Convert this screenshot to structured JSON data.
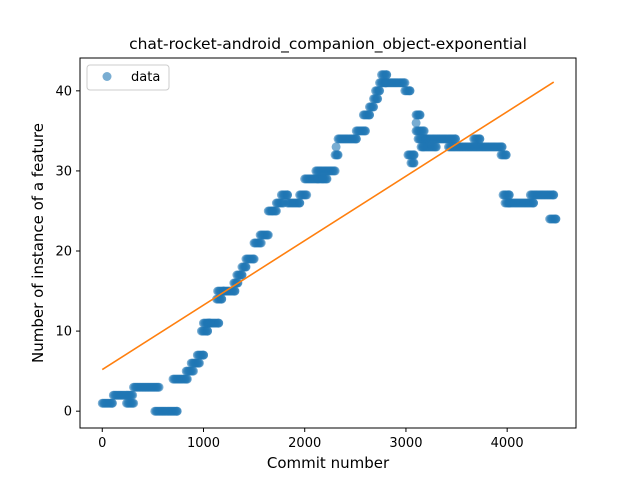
{
  "chart_data": {
    "type": "scatter",
    "title": "chat-rocket-android_companion_object-exponential",
    "xlabel": "Commit number",
    "ylabel": "Number of instance of a feature",
    "xlim": [
      -220,
      4680
    ],
    "ylim": [
      -2.1,
      44.1
    ],
    "xticks": [
      0,
      1000,
      2000,
      3000,
      4000
    ],
    "yticks": [
      0,
      10,
      20,
      30,
      40
    ],
    "legend": {
      "position": "top-left",
      "entries": [
        "data"
      ]
    },
    "grid": false,
    "colors": {
      "data": "#1f77b4",
      "fit": "#ff7f0e"
    },
    "series": [
      {
        "name": "data",
        "kind": "scatter",
        "segments": [
          [
            0,
            100,
            1
          ],
          [
            110,
            300,
            2
          ],
          [
            240,
            310,
            1
          ],
          [
            310,
            560,
            3
          ],
          [
            520,
            740,
            0
          ],
          [
            700,
            840,
            4
          ],
          [
            830,
            900,
            5
          ],
          [
            880,
            960,
            6
          ],
          [
            940,
            1000,
            7
          ],
          [
            980,
            1040,
            10
          ],
          [
            1000,
            1060,
            11
          ],
          [
            1040,
            1150,
            11
          ],
          [
            1130,
            1180,
            14
          ],
          [
            1140,
            1200,
            15
          ],
          [
            1200,
            1310,
            15
          ],
          [
            1300,
            1340,
            16
          ],
          [
            1330,
            1380,
            17
          ],
          [
            1380,
            1420,
            18
          ],
          [
            1420,
            1500,
            19
          ],
          [
            1500,
            1570,
            21
          ],
          [
            1560,
            1640,
            22
          ],
          [
            1640,
            1720,
            25
          ],
          [
            1720,
            1790,
            26
          ],
          [
            1770,
            1830,
            27
          ],
          [
            1830,
            1950,
            26
          ],
          [
            1950,
            2020,
            27
          ],
          [
            2000,
            2130,
            29
          ],
          [
            2130,
            2220,
            29
          ],
          [
            2110,
            2300,
            30
          ],
          [
            2300,
            2330,
            32
          ],
          [
            2330,
            2510,
            34
          ],
          [
            2510,
            2600,
            35
          ],
          [
            2580,
            2640,
            37
          ],
          [
            2640,
            2680,
            38
          ],
          [
            2680,
            2720,
            39
          ],
          [
            2700,
            2740,
            40
          ],
          [
            2740,
            2800,
            41
          ],
          [
            2760,
            2810,
            42
          ],
          [
            2800,
            2990,
            41
          ],
          [
            2990,
            3040,
            40
          ],
          [
            3020,
            3080,
            32
          ],
          [
            3050,
            3080,
            31
          ],
          [
            3100,
            3140,
            37
          ],
          [
            3100,
            3180,
            35
          ],
          [
            3120,
            3200,
            34
          ],
          [
            3150,
            3300,
            33
          ],
          [
            3200,
            3490,
            34
          ],
          [
            3420,
            3950,
            33
          ],
          [
            3670,
            3730,
            34
          ],
          [
            3940,
            3990,
            32
          ],
          [
            3960,
            4020,
            27
          ],
          [
            3980,
            4020,
            26
          ],
          [
            4020,
            4260,
            26
          ],
          [
            4230,
            4460,
            27
          ],
          [
            4420,
            4480,
            24
          ]
        ],
        "points": [
          [
            2310,
            33
          ],
          [
            3100,
            36
          ],
          [
            2180,
            29
          ],
          [
            1680,
            25
          ],
          [
            3170,
            33
          ]
        ]
      },
      {
        "name": "",
        "kind": "line",
        "x": [
          0,
          4460
        ],
        "y": [
          5.2,
          41.1
        ]
      }
    ]
  }
}
